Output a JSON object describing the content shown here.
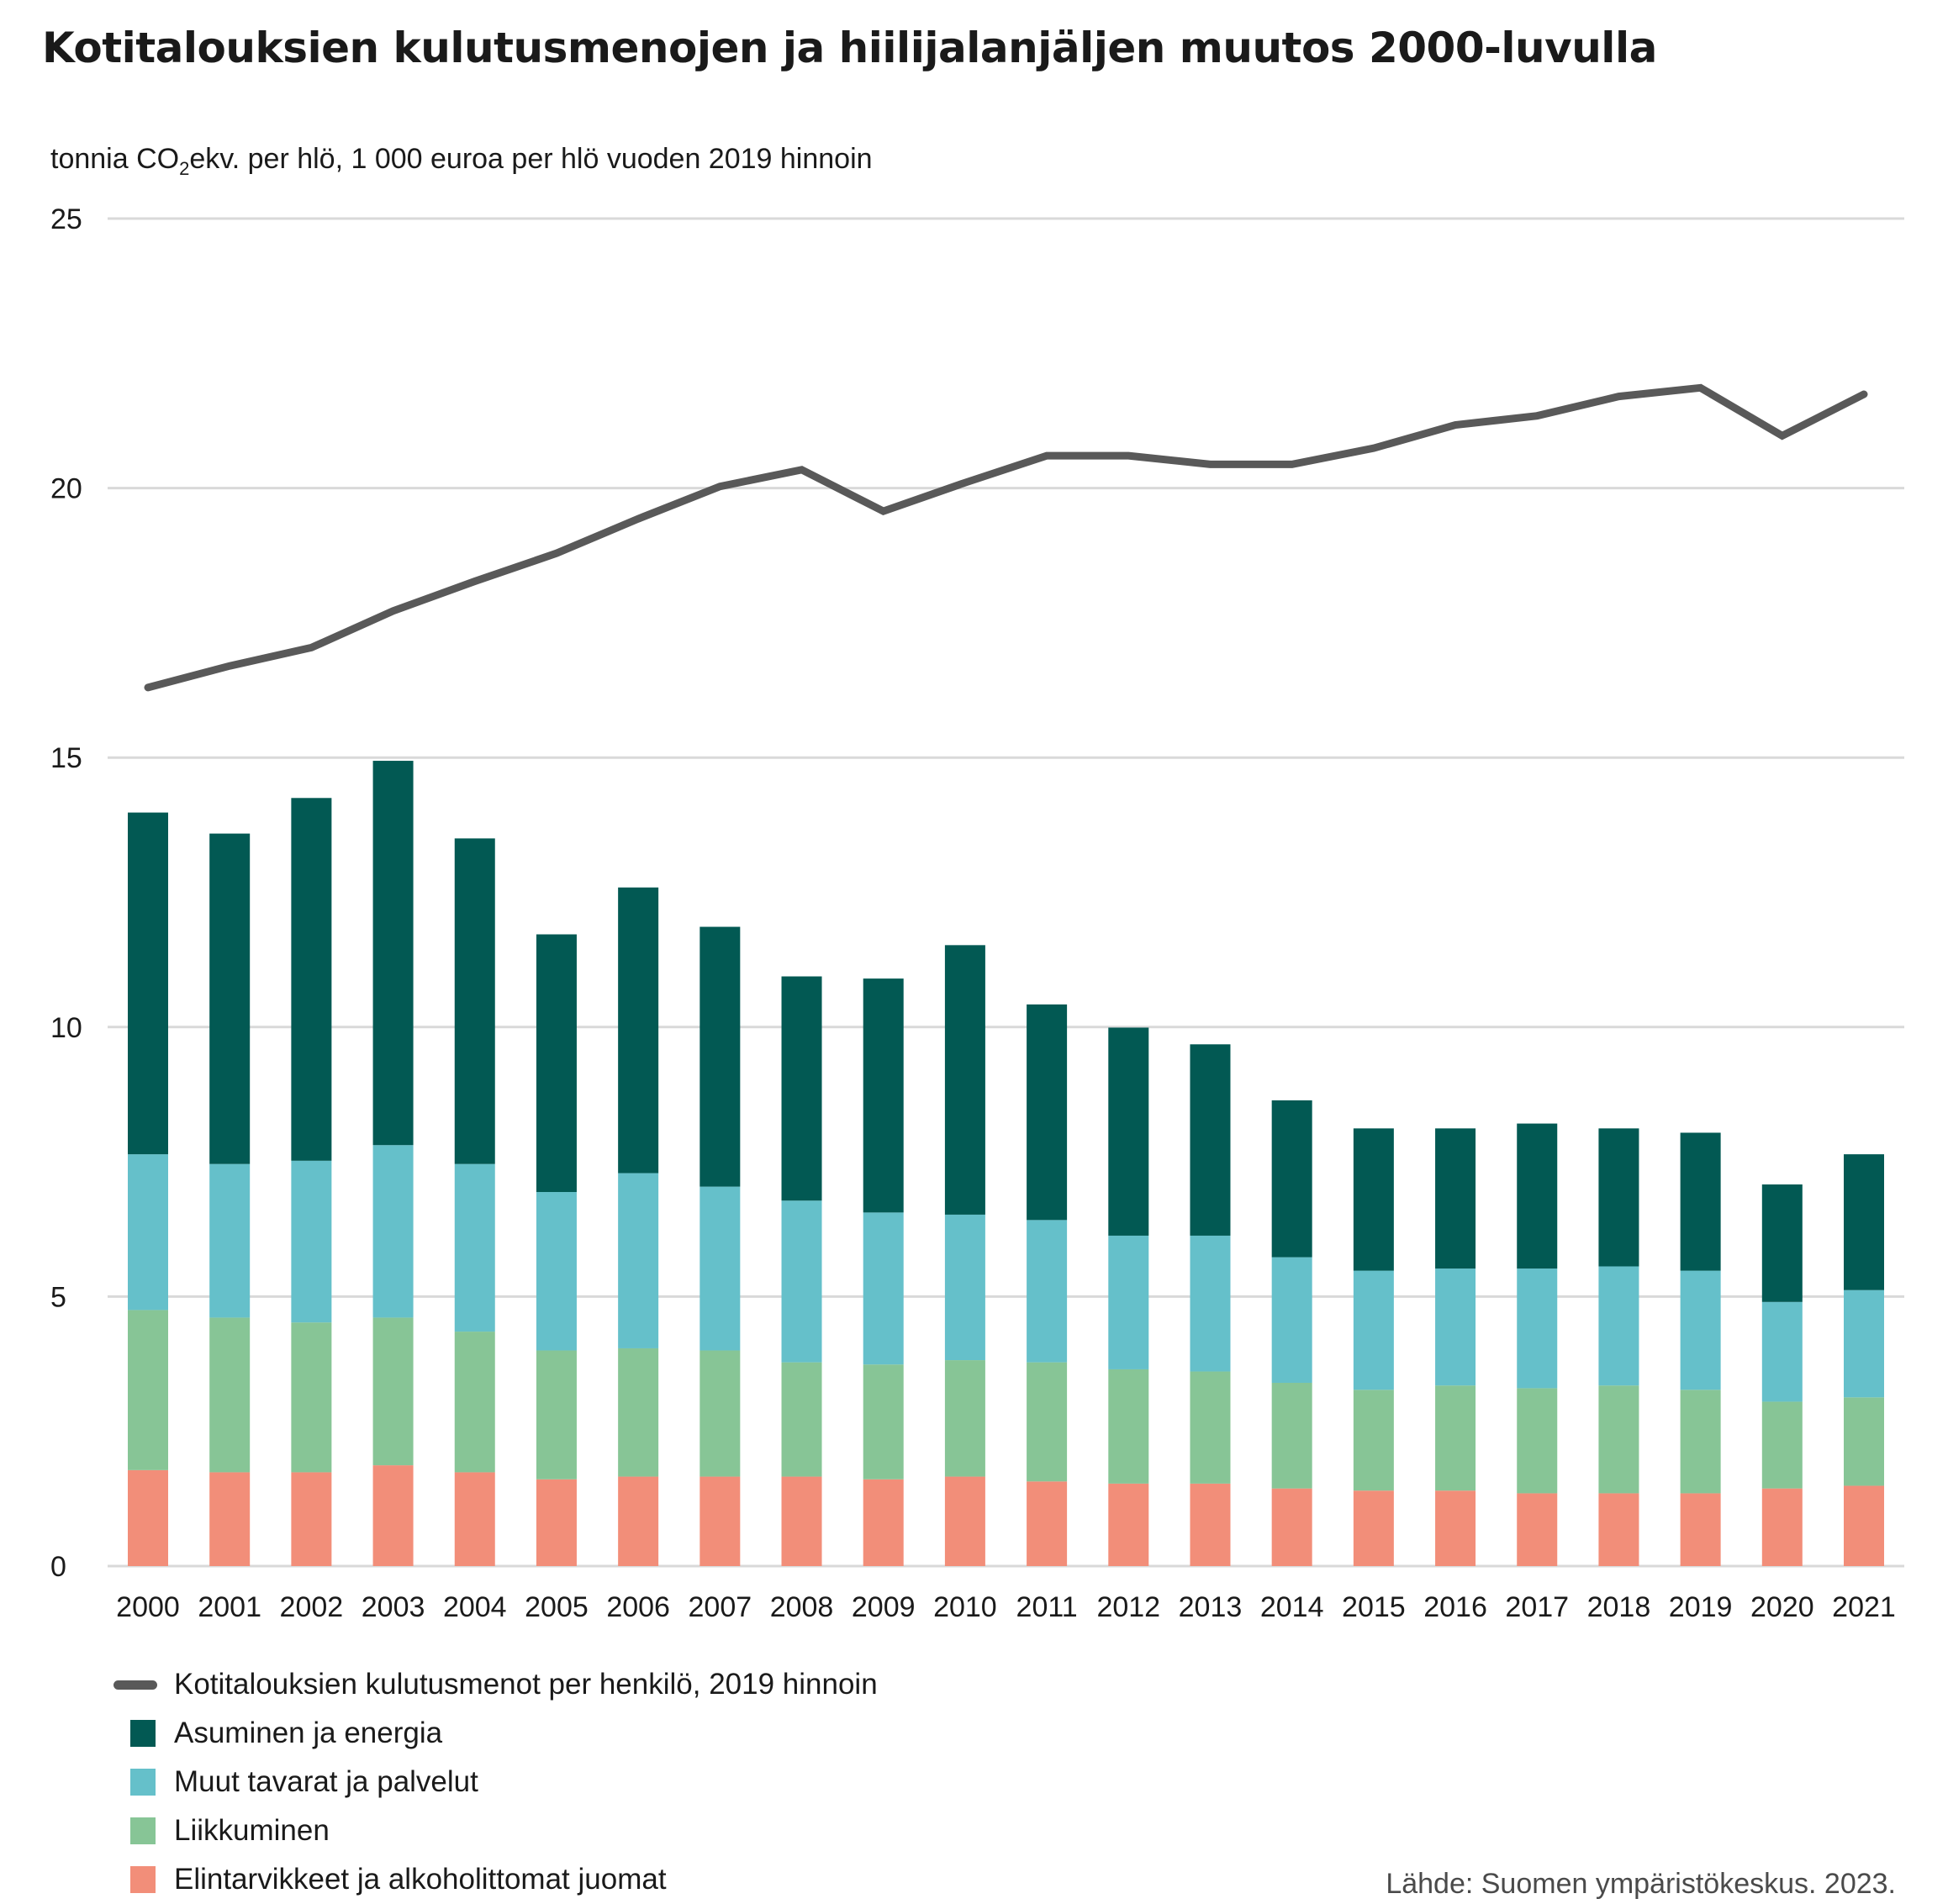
{
  "chart_data": {
    "type": "bar",
    "title": "Kotitalouksien kulutusmenojen ja hiilijalanjäljen muutos 2000-luvulla",
    "ylabel_prefix": "tonnia CO",
    "ylabel_sub": "2",
    "ylabel_suffix": "ekv. per hlö, 1 000 euroa per hlö vuoden 2019 hinnoin",
    "xlabel": "",
    "ylim": [
      0,
      25
    ],
    "yticks": [
      0,
      5,
      10,
      15,
      20,
      25
    ],
    "grid": true,
    "stacked": true,
    "legend_position": "bottom-left",
    "categories": [
      "2000",
      "2001",
      "2002",
      "2003",
      "2004",
      "2005",
      "2006",
      "2007",
      "2008",
      "2009",
      "2010",
      "2011",
      "2012",
      "2013",
      "2014",
      "2015",
      "2016",
      "2017",
      "2018",
      "2019",
      "2020",
      "2021"
    ],
    "series": [
      {
        "name": "Elintarvikkeet ja alkoholittomat juomat",
        "kind": "bar",
        "color": "#f28e79",
        "values": [
          1.78,
          1.74,
          1.74,
          1.87,
          1.74,
          1.61,
          1.66,
          1.66,
          1.66,
          1.61,
          1.66,
          1.57,
          1.53,
          1.53,
          1.44,
          1.4,
          1.4,
          1.35,
          1.35,
          1.35,
          1.44,
          1.49
        ]
      },
      {
        "name": "Liikkuminen",
        "kind": "bar",
        "color": "#87c596",
        "values": [
          2.97,
          2.87,
          2.78,
          2.74,
          2.61,
          2.39,
          2.38,
          2.34,
          2.12,
          2.13,
          2.16,
          2.21,
          2.12,
          2.08,
          1.96,
          1.87,
          1.95,
          1.95,
          2.0,
          1.92,
          1.61,
          1.64
        ]
      },
      {
        "name": "Muut tavarat ja palvelut",
        "kind": "bar",
        "color": "#65c0ca",
        "values": [
          2.89,
          2.85,
          3.0,
          3.2,
          3.11,
          2.94,
          3.25,
          3.04,
          3.0,
          2.82,
          2.7,
          2.64,
          2.48,
          2.52,
          2.33,
          2.21,
          2.17,
          2.22,
          2.21,
          2.21,
          1.85,
          1.99
        ]
      },
      {
        "name": "Asuminen ja energia",
        "kind": "bar",
        "color": "#025953",
        "values": [
          6.34,
          6.13,
          6.73,
          7.13,
          6.04,
          4.78,
          5.3,
          4.82,
          4.16,
          4.34,
          5.0,
          4.0,
          3.86,
          3.55,
          2.91,
          2.64,
          2.6,
          2.69,
          2.56,
          2.56,
          2.18,
          2.52
        ]
      },
      {
        "name": "Kotitalouksien kulutusmenot per henkilö, 2019 hinnoin",
        "kind": "line",
        "color": "#595959",
        "values": [
          16.3,
          16.7,
          17.04,
          17.72,
          18.27,
          18.79,
          19.43,
          20.03,
          20.34,
          19.57,
          20.1,
          20.6,
          20.6,
          20.44,
          20.44,
          20.74,
          21.17,
          21.34,
          21.7,
          21.86,
          20.97,
          21.74
        ]
      }
    ],
    "legend_order": [
      4,
      3,
      2,
      1,
      0
    ]
  },
  "source": "Lähde: Suomen ympäristökeskus. 2023."
}
